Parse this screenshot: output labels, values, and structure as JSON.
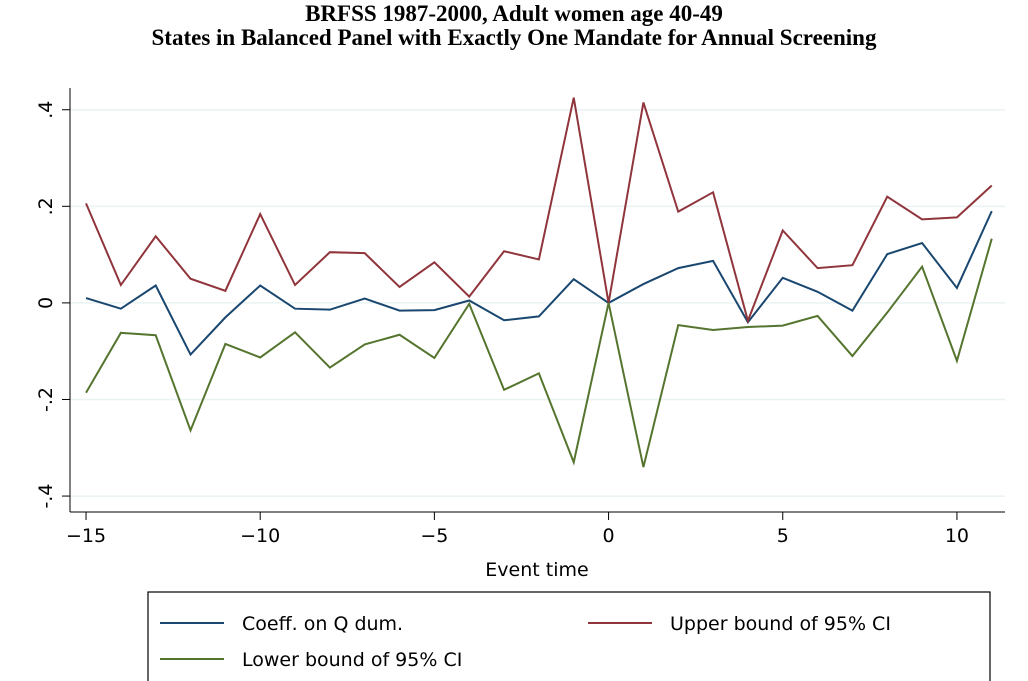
{
  "chart_data": {
    "type": "line",
    "title": "BRFSS 1987-2000, Adult women age 40-49",
    "subtitle": "States in Balanced Panel with Exactly One Mandate for Annual Screening",
    "xlabel": "Event time",
    "x": [
      -15,
      -14,
      -13,
      -12,
      -11,
      -10,
      -9,
      -8,
      -7,
      -6,
      -5,
      -4,
      -3,
      -2,
      -1,
      0,
      1,
      2,
      3,
      4,
      5,
      6,
      7,
      8,
      9,
      10,
      11
    ],
    "series": [
      {
        "name": "Coeff. on Q dum.",
        "color": "#1a476f",
        "values": [
          0.01,
          -0.012,
          0.036,
          -0.107,
          -0.03,
          0.036,
          -0.012,
          -0.014,
          0.009,
          -0.016,
          -0.015,
          0.005,
          -0.036,
          -0.028,
          0.049,
          0,
          0.039,
          0.072,
          0.087,
          -0.04,
          0.052,
          0.023,
          -0.016,
          0.101,
          0.124,
          0.031,
          0.19
        ]
      },
      {
        "name": "Upper bound of 95% CI",
        "color": "#90353b",
        "values": [
          0.206,
          0.037,
          0.138,
          0.05,
          0.025,
          0.184,
          0.037,
          0.105,
          0.103,
          0.033,
          0.084,
          0.013,
          0.107,
          0.09,
          0.425,
          0,
          0.415,
          0.189,
          0.229,
          -0.037,
          0.15,
          0.072,
          0.078,
          0.22,
          0.173,
          0.177,
          0.243
        ]
      },
      {
        "name": "Lower bound of 95% CI",
        "color": "#55752f",
        "values": [
          -0.186,
          -0.062,
          -0.067,
          -0.264,
          -0.085,
          -0.113,
          -0.061,
          -0.134,
          -0.086,
          -0.066,
          -0.114,
          -0.002,
          -0.18,
          -0.146,
          -0.33,
          0,
          -0.34,
          -0.046,
          -0.056,
          -0.05,
          -0.047,
          -0.027,
          -0.11,
          -0.02,
          0.075,
          -0.12,
          0.133
        ]
      }
    ],
    "xlim": [
      -15.46,
      11.38
    ],
    "ylim": [
      -0.433,
      0.445
    ],
    "xticks": [
      {
        "value": -15,
        "label": "−15"
      },
      {
        "value": -10,
        "label": "−10"
      },
      {
        "value": -5,
        "label": "−5"
      },
      0,
      5,
      10
    ],
    "yticks": [
      {
        "value": -0.4,
        "label": "-.4"
      },
      {
        "value": -0.2,
        "label": "-.2"
      },
      0,
      {
        "value": 0.2,
        "label": ".2"
      },
      {
        "value": 0.4,
        "label": ".4"
      }
    ],
    "grid": true
  }
}
